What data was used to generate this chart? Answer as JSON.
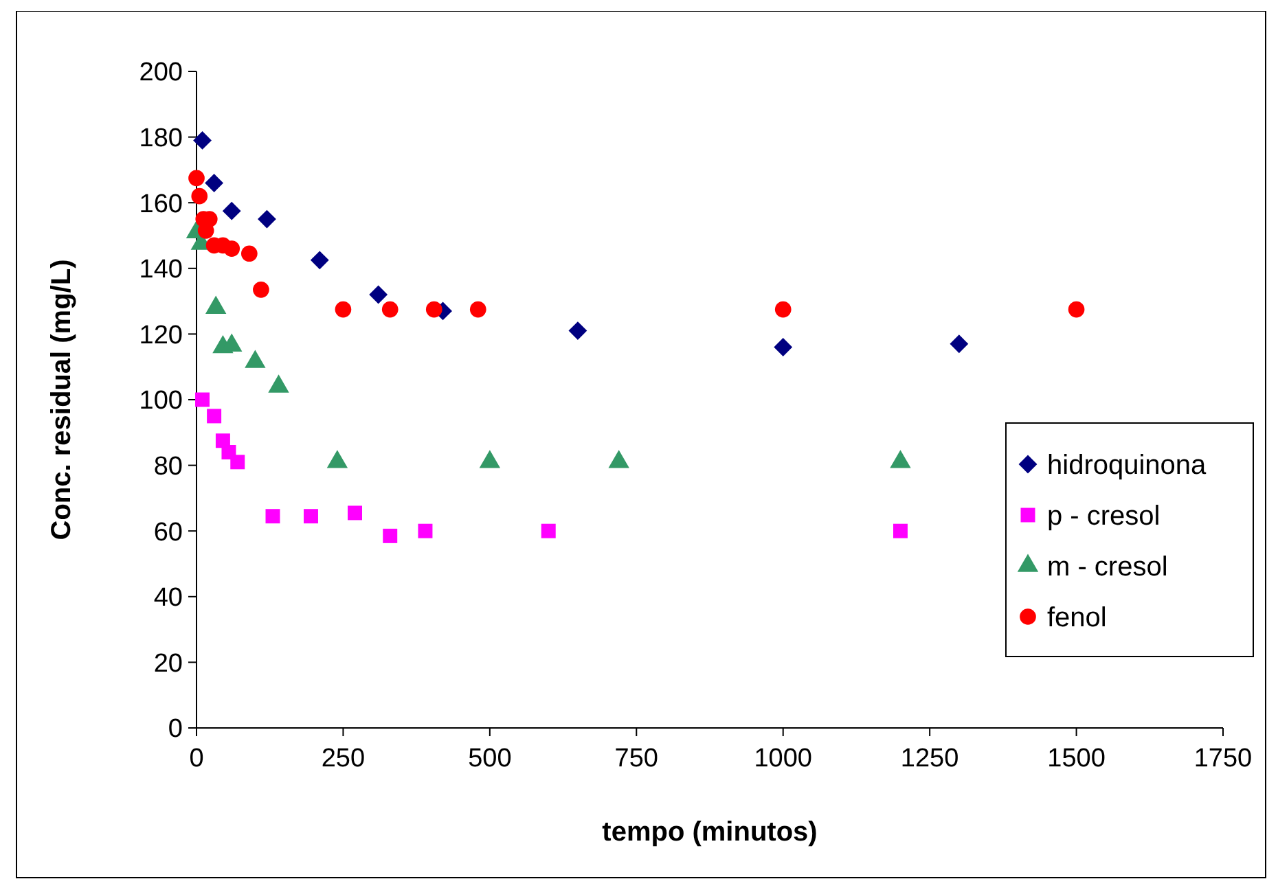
{
  "chart_data": {
    "type": "scatter",
    "xlabel": "tempo (minutos)",
    "ylabel": "Conc. residual (mg/L)",
    "xlim": [
      0,
      1750
    ],
    "xticks": [
      0,
      250,
      500,
      750,
      1000,
      1250,
      1500,
      1750
    ],
    "ylim": [
      0,
      200
    ],
    "yticks": [
      0,
      20,
      40,
      60,
      80,
      100,
      120,
      140,
      160,
      180,
      200
    ],
    "grid": false,
    "legend": "right",
    "series": [
      {
        "name": "hidroquinona",
        "color": "#000080",
        "marker": "diamond",
        "x": [
          10,
          30,
          60,
          120,
          210,
          310,
          420,
          650,
          1000,
          1300
        ],
        "values": [
          179,
          166,
          157.5,
          155,
          142.5,
          132,
          127,
          121,
          116,
          117
        ]
      },
      {
        "name": "p - cresol",
        "color": "#ff00ff",
        "marker": "square",
        "x": [
          10,
          30,
          45,
          55,
          70,
          130,
          195,
          270,
          330,
          390,
          600,
          1200
        ],
        "values": [
          100,
          95,
          87.5,
          84,
          81,
          64.5,
          64.5,
          65.5,
          58.5,
          60,
          60,
          60
        ]
      },
      {
        "name": "m - cresol",
        "color": "#339966",
        "marker": "triangle",
        "x": [
          0,
          8,
          33,
          45,
          60,
          100,
          140,
          240,
          500,
          720,
          1200
        ],
        "values": [
          151,
          147.5,
          128,
          116,
          116.5,
          111.5,
          104,
          81,
          81,
          81,
          81
        ]
      },
      {
        "name": "fenol",
        "color": "#ff0000",
        "marker": "circle",
        "x": [
          0,
          5,
          12,
          16,
          22,
          30,
          45,
          60,
          90,
          110,
          250,
          330,
          405,
          480,
          1000,
          1500
        ],
        "values": [
          167.5,
          162,
          155,
          151.5,
          155,
          147,
          147,
          146,
          144.5,
          133.5,
          127.5,
          127.5,
          127.5,
          127.5,
          127.5,
          127.5
        ]
      }
    ]
  }
}
